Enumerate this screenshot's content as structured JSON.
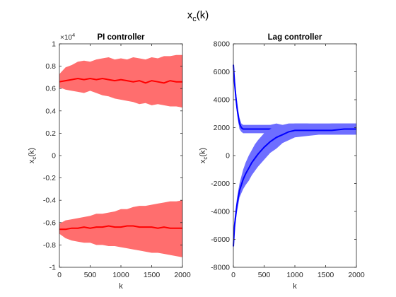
{
  "figure": {
    "title": "x",
    "title_sub": "c",
    "title_tail": "(k)"
  },
  "chart_data": [
    {
      "type": "area",
      "title": "PI controller",
      "xlabel": "k",
      "ylabel": "x",
      "ylabel_sub": "c",
      "ylabel_tail": "(k)",
      "exponent_label": "×10",
      "exponent_power": "4",
      "xlim": [
        0,
        2000
      ],
      "ylim": [
        -10000,
        10000
      ],
      "xticks": [
        "0",
        "500",
        "1000",
        "1500",
        "2000"
      ],
      "yticks": [
        "-1",
        "-0.8",
        "-0.6",
        "-0.4",
        "-0.2",
        "0",
        "0.2",
        "0.4",
        "0.6",
        "0.8",
        "1"
      ],
      "band_color": "#ff6e6e",
      "line_color": "#ff0000",
      "series": [
        {
          "x": [
            0,
            100,
            200,
            300,
            400,
            500,
            600,
            700,
            800,
            900,
            1000,
            1100,
            1200,
            1300,
            1400,
            1500,
            1600,
            1700,
            1800,
            1900,
            2000
          ],
          "mean": [
            6600,
            6700,
            6800,
            6900,
            6800,
            6900,
            6800,
            6900,
            6800,
            6700,
            6800,
            6700,
            6600,
            6700,
            6500,
            6700,
            6600,
            6500,
            6700,
            6600,
            6600
          ],
          "upper": [
            7300,
            7900,
            8100,
            8400,
            8500,
            8400,
            8600,
            8700,
            8800,
            8600,
            8700,
            8600,
            8800,
            8700,
            8600,
            8800,
            8700,
            8900,
            8900,
            9000,
            9000
          ],
          "lower": [
            6100,
            5900,
            5800,
            5700,
            5600,
            5800,
            5600,
            5400,
            5300,
            5100,
            5000,
            4900,
            4800,
            4600,
            4700,
            4500,
            4600,
            4500,
            4400,
            4400,
            4300
          ]
        },
        {
          "x": [
            0,
            100,
            200,
            300,
            400,
            500,
            600,
            700,
            800,
            900,
            1000,
            1100,
            1200,
            1300,
            1400,
            1500,
            1600,
            1700,
            1800,
            1900,
            2000
          ],
          "mean": [
            -6600,
            -6600,
            -6500,
            -6500,
            -6400,
            -6500,
            -6400,
            -6400,
            -6300,
            -6400,
            -6400,
            -6300,
            -6300,
            -6400,
            -6400,
            -6400,
            -6500,
            -6400,
            -6500,
            -6500,
            -6500
          ],
          "upper": [
            -6100,
            -5800,
            -5700,
            -5600,
            -5500,
            -5400,
            -5200,
            -5200,
            -5100,
            -5000,
            -4800,
            -4800,
            -4600,
            -4500,
            -4500,
            -4400,
            -4300,
            -4200,
            -4100,
            -4100,
            -4000
          ],
          "lower": [
            -7000,
            -7400,
            -7600,
            -7700,
            -7800,
            -7800,
            -8000,
            -8000,
            -8100,
            -8100,
            -8200,
            -8300,
            -8400,
            -8500,
            -8600,
            -8700,
            -8700,
            -8800,
            -8900,
            -9000,
            -9100
          ]
        }
      ]
    },
    {
      "type": "area",
      "title": "Lag controller",
      "xlabel": "k",
      "ylabel": "x",
      "ylabel_sub": "c",
      "ylabel_tail": "(k)",
      "xlim": [
        0,
        2000
      ],
      "ylim": [
        -8000,
        8000
      ],
      "xticks": [
        "0",
        "500",
        "1000",
        "1500",
        "2000"
      ],
      "yticks": [
        "-8000",
        "-6000",
        "-4000",
        "-2000",
        "0",
        "2000",
        "4000",
        "6000",
        "8000"
      ],
      "band_color": "#6e6eff",
      "line_color": "#0000ff",
      "series": [
        {
          "x": [
            0,
            20,
            40,
            60,
            80,
            100,
            130,
            160,
            200,
            300,
            400,
            500,
            600,
            700,
            800,
            900,
            1000,
            1200,
            1400,
            1600,
            1800,
            2000
          ],
          "mean": [
            6500,
            5200,
            4200,
            3400,
            2800,
            2300,
            2000,
            1900,
            1900,
            1900,
            1900,
            1900,
            1900,
            1800,
            1900,
            1900,
            1900,
            1900,
            1900,
            1900,
            1900,
            1900
          ],
          "upper": [
            6900,
            5700,
            4700,
            3900,
            3200,
            2700,
            2300,
            2200,
            2200,
            2200,
            2200,
            2200,
            2200,
            2300,
            2200,
            2200,
            2300,
            2300,
            2200,
            2300,
            2300,
            2300
          ],
          "lower": [
            6100,
            4800,
            3800,
            3000,
            2400,
            1900,
            1700,
            1600,
            1600,
            1600,
            1600,
            1600,
            1500,
            1500,
            1600,
            1500,
            1500,
            1500,
            1500,
            1500,
            1500,
            1500
          ]
        },
        {
          "x": [
            0,
            20,
            40,
            60,
            80,
            100,
            130,
            160,
            200,
            250,
            300,
            350,
            400,
            500,
            600,
            700,
            800,
            900,
            1000,
            1200,
            1400,
            1600,
            1800,
            2000
          ],
          "mean": [
            -6500,
            -5000,
            -4200,
            -3500,
            -3000,
            -2500,
            -2100,
            -1700,
            -1300,
            -900,
            -500,
            -200,
            100,
            600,
            1000,
            1300,
            1500,
            1700,
            1800,
            1800,
            1800,
            1800,
            1900,
            1900
          ],
          "upper": [
            -6000,
            -4500,
            -3700,
            -3000,
            -2500,
            -2000,
            -1500,
            -1000,
            -500,
            0,
            400,
            800,
            1100,
            1600,
            1900,
            2100,
            2200,
            2300,
            2300,
            2300,
            2300,
            2300,
            2300,
            2300
          ],
          "lower": [
            -6900,
            -5500,
            -4700,
            -4000,
            -3500,
            -3000,
            -2700,
            -2400,
            -2100,
            -1800,
            -1400,
            -1100,
            -800,
            -300,
            200,
            500,
            900,
            1100,
            1300,
            1400,
            1500,
            1500,
            1500,
            1500
          ]
        }
      ]
    }
  ]
}
